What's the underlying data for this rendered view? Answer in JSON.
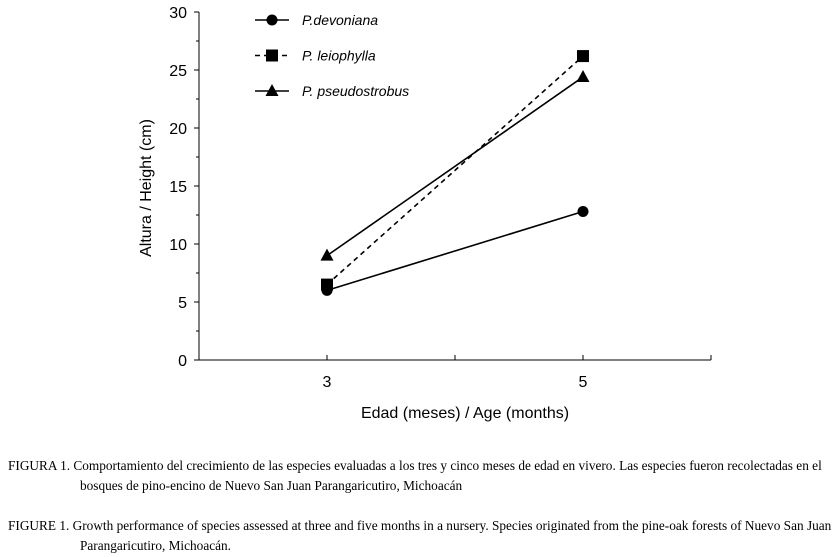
{
  "chart_data": {
    "type": "line",
    "x": [
      3,
      5
    ],
    "xticks": [
      "3",
      "5"
    ],
    "yticks": [
      "0",
      "5",
      "10",
      "15",
      "20",
      "25",
      "30"
    ],
    "ylim": [
      0,
      30
    ],
    "xlabel": "Edad (meses) / Age (months)",
    "ylabel": "Altura / Height (cm)",
    "legend_position": "top-left",
    "series": [
      {
        "name": "P.devoniana",
        "marker": "circle",
        "line": "solid",
        "values": [
          6.0,
          12.8
        ]
      },
      {
        "name": "P. leiophylla",
        "marker": "square",
        "line": "dashed",
        "values": [
          6.5,
          26.2
        ]
      },
      {
        "name": "P. pseudostrobus",
        "marker": "triangle",
        "line": "solid",
        "values": [
          9.0,
          24.4
        ]
      }
    ]
  },
  "captions": {
    "es": "FIGURA 1. Comportamiento del crecimiento de las especies evaluadas a los tres y cinco meses de edad en vivero. Las especies fueron recolectadas en el bosques de pino-encino de Nuevo San Juan Parangaricutiro, Michoacán",
    "en": "FIGURE 1. Growth performance of species assessed at three and five months in a nursery. Species originated from the pine-oak forests of Nuevo San Juan Parangaricutiro, Michoacán."
  }
}
